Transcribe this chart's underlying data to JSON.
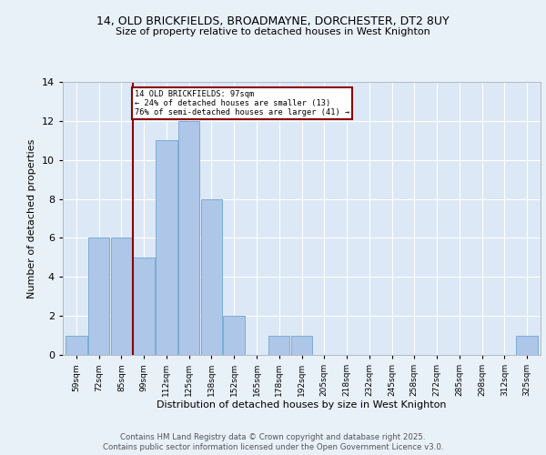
{
  "title1": "14, OLD BRICKFIELDS, BROADMAYNE, DORCHESTER, DT2 8UY",
  "title2": "Size of property relative to detached houses in West Knighton",
  "xlabel": "Distribution of detached houses by size in West Knighton",
  "ylabel": "Number of detached properties",
  "bins": [
    "59sqm",
    "72sqm",
    "85sqm",
    "99sqm",
    "112sqm",
    "125sqm",
    "138sqm",
    "152sqm",
    "165sqm",
    "178sqm",
    "192sqm",
    "205sqm",
    "218sqm",
    "232sqm",
    "245sqm",
    "258sqm",
    "272sqm",
    "285sqm",
    "298sqm",
    "312sqm",
    "325sqm"
  ],
  "counts": [
    1,
    6,
    6,
    5,
    11,
    12,
    8,
    2,
    0,
    1,
    1,
    0,
    0,
    0,
    0,
    0,
    0,
    0,
    0,
    0,
    1
  ],
  "bar_color": "#aec6e8",
  "bar_edge_color": "#7aadd4",
  "property_line_x": 3,
  "property_line_label": "14 OLD BRICKFIELDS: 97sqm",
  "annotation_line1": "← 24% of detached houses are smaller (13)",
  "annotation_line2": "76% of semi-detached houses are larger (41) →",
  "annotation_box_color": "#ffffff",
  "annotation_box_edge": "#8b0000",
  "property_line_color": "#8b0000",
  "ylim": [
    0,
    14
  ],
  "yticks": [
    0,
    2,
    4,
    6,
    8,
    10,
    12,
    14
  ],
  "footer1": "Contains HM Land Registry data © Crown copyright and database right 2025.",
  "footer2": "Contains public sector information licensed under the Open Government Licence v3.0.",
  "bg_color": "#e8f0f8",
  "plot_bg_color": "#dce8f5"
}
